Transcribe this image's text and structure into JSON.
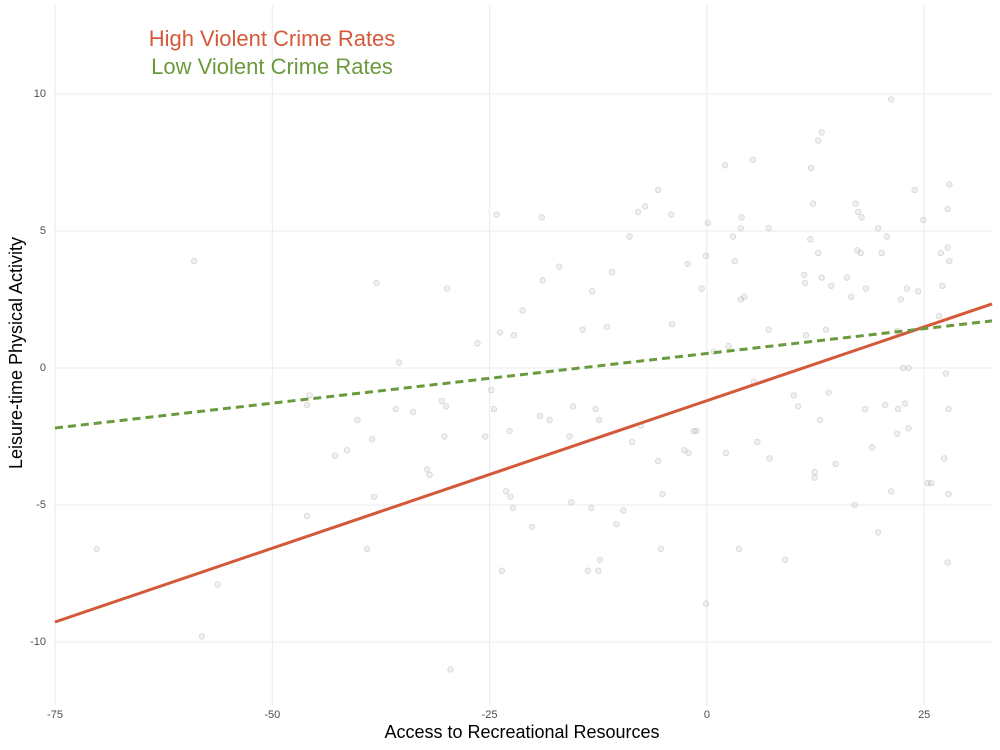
{
  "chart_data": {
    "type": "scatter",
    "x_label": "Access to Recreational Resources",
    "y_label": "Leisure-time Physical Activity",
    "xlim": [
      -75,
      32.8
    ],
    "ylim": [
      -12.3,
      13.25
    ],
    "xticks": [
      -75,
      -50,
      -25,
      0,
      25
    ],
    "yticks": [
      -10,
      -5,
      0,
      5,
      10
    ],
    "grid": true,
    "points": {
      "color": "#999999",
      "x": [
        -70.2,
        -59.0,
        -58.1,
        -56.3,
        -46.0,
        -45.7,
        -46.0,
        -42.8,
        -41.4,
        -40.2,
        -39.1,
        -38.5,
        -38.3,
        -38.0,
        -35.4,
        -35.8,
        -33.8,
        -32.2,
        -31.9,
        -30.5,
        -30.0,
        -29.9,
        -29.5,
        -30.2,
        -26.4,
        -25.5,
        -24.8,
        -24.5,
        -24.2,
        -23.8,
        -23.6,
        -23.1,
        -22.6,
        -22.3,
        -22.7,
        -22.2,
        -21.2,
        -20.1,
        -19.2,
        -19.0,
        -18.9,
        -18.1,
        -17.0,
        -15.8,
        -15.4,
        -15.6,
        -14.3,
        -13.7,
        -13.2,
        -13.3,
        -12.8,
        -12.5,
        -12.3,
        -12.4,
        -11.5,
        -10.9,
        -10.4,
        -9.6,
        -8.9,
        -8.6,
        -7.9,
        -7.1,
        -7.6,
        -5.6,
        -5.6,
        -5.3,
        -5.1,
        -4.1,
        -4.0,
        -2.6,
        -2.2,
        -2.1,
        -1.5,
        -1.2,
        -0.6,
        -0.1,
        0.1,
        -0.1,
        0.8,
        2.1,
        2.2,
        2.5,
        3.0,
        3.2,
        3.7,
        3.9,
        3.9,
        4.3,
        4.0,
        5.3,
        5.4,
        5.8,
        7.1,
        7.2,
        7.1,
        9.0,
        10.0,
        10.5,
        11.2,
        11.3,
        11.4,
        12.0,
        11.9,
        12.2,
        12.4,
        12.4,
        12.8,
        13.2,
        12.8,
        13.0,
        13.2,
        13.7,
        14.0,
        14.3,
        14.8,
        16.1,
        16.6,
        17.0,
        17.1,
        17.4,
        17.3,
        17.7,
        17.8,
        18.2,
        18.3,
        19.0,
        19.7,
        19.7,
        20.1,
        20.5,
        20.7,
        21.2,
        21.2,
        21.9,
        21.9,
        22.0,
        22.3,
        22.6,
        22.8,
        23.0,
        23.2,
        23.2,
        23.9,
        24.3,
        24.9,
        25.4,
        25.8,
        26.7,
        26.9,
        27.1,
        27.3,
        27.5,
        27.8,
        27.7,
        27.9,
        27.9,
        27.8,
        27.7,
        27.7
      ],
      "y": [
        -6.6,
        3.9,
        -9.8,
        -7.9,
        -1.35,
        -1.0,
        -5.4,
        -3.2,
        -3.0,
        -1.9,
        -6.6,
        -2.6,
        -4.7,
        3.1,
        0.2,
        -1.5,
        -1.6,
        -3.7,
        -3.9,
        -1.2,
        -1.4,
        2.9,
        -11.0,
        -2.5,
        0.9,
        -2.5,
        -0.8,
        -1.5,
        5.6,
        1.3,
        -7.4,
        -4.5,
        -4.7,
        -5.1,
        -2.3,
        1.2,
        2.1,
        -5.8,
        -1.75,
        5.5,
        3.2,
        -1.9,
        3.7,
        -2.5,
        -1.4,
        -4.9,
        1.4,
        -7.4,
        2.8,
        -5.1,
        -1.5,
        -7.4,
        -7.0,
        -1.9,
        1.5,
        3.5,
        -5.7,
        -5.2,
        4.8,
        -2.7,
        5.7,
        5.9,
        -2.1,
        6.5,
        -3.4,
        -6.6,
        -4.6,
        5.6,
        1.6,
        -3.0,
        3.8,
        -3.1,
        -2.3,
        -2.3,
        2.9,
        -8.6,
        5.3,
        4.1,
        0.6,
        7.4,
        -3.1,
        0.8,
        4.8,
        3.9,
        -6.6,
        5.1,
        2.5,
        2.6,
        5.5,
        7.6,
        -0.5,
        -2.7,
        5.1,
        -3.3,
        1.4,
        -7.0,
        -1.0,
        -1.4,
        3.4,
        3.1,
        1.2,
        7.3,
        4.7,
        6.0,
        -3.8,
        -4.0,
        8.3,
        8.6,
        4.2,
        -1.9,
        3.3,
        1.4,
        -0.9,
        3.0,
        -3.5,
        3.3,
        2.6,
        -5.0,
        6.0,
        5.7,
        4.3,
        4.2,
        5.5,
        -1.5,
        2.9,
        -2.9,
        -6.0,
        5.1,
        4.2,
        -1.35,
        4.8,
        9.8,
        -4.5,
        1.35,
        -2.4,
        -1.5,
        2.5,
        0.0,
        -1.3,
        2.9,
        0.0,
        -2.2,
        6.5,
        2.8,
        5.4,
        -4.2,
        -4.2,
        1.9,
        4.2,
        3.0,
        -3.3,
        -0.2,
        -4.6,
        -7.1,
        6.7,
        3.9,
        -1.5,
        4.4,
        5.8
      ]
    },
    "series": [
      {
        "name": "High Violent Crime Rates",
        "color": "#d4593a",
        "dashed": false,
        "x": [
          -75,
          32.8
        ],
        "y": [
          -9.27,
          2.34
        ]
      },
      {
        "name": "Low Violent Crime Rates",
        "color": "#6a9a3d",
        "dashed": true,
        "x": [
          -75,
          32.8
        ],
        "y": [
          -2.19,
          1.72
        ]
      }
    ]
  }
}
